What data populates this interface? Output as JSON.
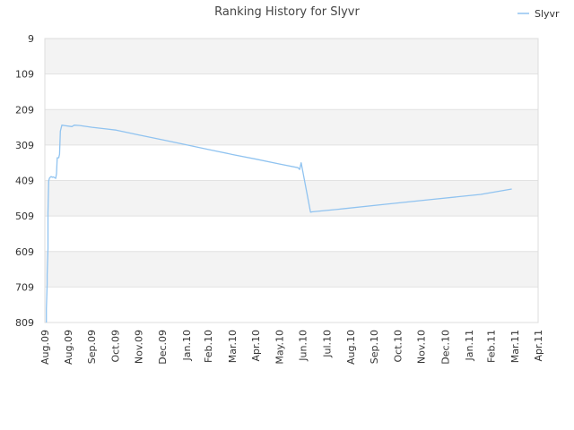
{
  "chart_data": {
    "type": "line",
    "title": "Ranking History for Slyvr",
    "xlabel": "",
    "ylabel": "",
    "y_inverted": true,
    "ylim": [
      809,
      9
    ],
    "y_ticks": [
      9,
      109,
      209,
      309,
      409,
      509,
      609,
      709,
      809
    ],
    "y_tick_labels": [
      "9",
      "109",
      "209",
      "309",
      "409",
      "509",
      "609",
      "709",
      "809"
    ],
    "x_ticks": [
      "2009-08-01",
      "2009-08-31",
      "2009-09-30",
      "2009-10-31",
      "2009-11-30",
      "2009-12-31",
      "2010-01-31",
      "2010-02-28",
      "2010-03-31",
      "2010-04-30",
      "2010-05-31",
      "2010-06-30",
      "2010-07-31",
      "2010-08-31",
      "2010-09-30",
      "2010-10-31",
      "2010-11-30",
      "2010-12-31",
      "2011-01-31",
      "2011-02-28",
      "2011-03-31",
      "2011-04-30"
    ],
    "x_tick_labels": [
      "Aug.09",
      "Aug.09",
      "Sep.09",
      "Oct.09",
      "Nov.09",
      "Dec.09",
      "Jan.10",
      "Feb.10",
      "Mar.10",
      "Apr.10",
      "May.10",
      "Jun.10",
      "Jul.10",
      "Aug.10",
      "Sep.10",
      "Oct.10",
      "Nov.10",
      "Dec.10",
      "Jan.11",
      "Feb.11",
      "Mar.11",
      "Apr.11"
    ],
    "xlim": [
      "2009-08-01",
      "2011-04-30"
    ],
    "grid": true,
    "legend_position": "top-right",
    "series_color": "#90c3f0",
    "band_color": "#f3f3f3",
    "series": [
      {
        "name": "Slyvr",
        "points": [
          [
            "2009-08-03",
            809
          ],
          [
            "2009-08-03",
            770
          ],
          [
            "2009-08-04",
            700
          ],
          [
            "2009-08-04",
            675
          ],
          [
            "2009-08-05",
            600
          ],
          [
            "2009-08-05",
            500
          ],
          [
            "2009-08-06",
            410
          ],
          [
            "2009-08-07",
            402
          ],
          [
            "2009-08-09",
            398
          ],
          [
            "2009-08-11",
            400
          ],
          [
            "2009-08-12",
            399
          ],
          [
            "2009-08-15",
            403
          ],
          [
            "2009-08-16",
            390
          ],
          [
            "2009-08-17",
            345
          ],
          [
            "2009-08-19",
            345
          ],
          [
            "2009-08-20",
            335
          ],
          [
            "2009-08-21",
            270
          ],
          [
            "2009-08-23",
            253
          ],
          [
            "2009-08-26",
            254
          ],
          [
            "2009-09-05",
            257
          ],
          [
            "2009-09-08",
            253
          ],
          [
            "2009-09-15",
            254
          ],
          [
            "2009-10-01",
            259
          ],
          [
            "2009-10-20",
            264
          ],
          [
            "2009-11-01",
            267
          ],
          [
            "2009-12-01",
            281
          ],
          [
            "2010-01-01",
            295
          ],
          [
            "2010-02-01",
            309
          ],
          [
            "2010-03-01",
            322
          ],
          [
            "2010-04-01",
            336
          ],
          [
            "2010-05-01",
            349
          ],
          [
            "2010-06-01",
            363
          ],
          [
            "2010-06-24",
            373
          ],
          [
            "2010-06-26",
            378
          ],
          [
            "2010-06-28",
            359
          ],
          [
            "2010-07-10",
            498
          ],
          [
            "2010-07-13",
            497
          ],
          [
            "2010-08-15",
            490
          ],
          [
            "2010-10-15",
            476
          ],
          [
            "2010-12-15",
            462
          ],
          [
            "2011-02-15",
            448
          ],
          [
            "2011-03-27",
            433
          ]
        ]
      }
    ]
  }
}
